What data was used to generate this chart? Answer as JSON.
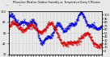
{
  "title": "Milwaukee Weather Outdoor Humidity vs. Temperature Every 5 Minutes",
  "bg_color": "#e8e8e8",
  "plot_bg_color": "#e8e8e8",
  "grid_color": "#b0b0b0",
  "red_color": "#cc0000",
  "blue_color": "#0000cc",
  "left_ylim": [
    20,
    100
  ],
  "right_ylim": [
    -10,
    110
  ],
  "left_yticks": [
    20,
    40,
    60,
    80,
    100
  ],
  "right_yticks": [
    0,
    10,
    20,
    30,
    40,
    50,
    60,
    70,
    80,
    90,
    100
  ],
  "n_points": 400,
  "seed": 17
}
